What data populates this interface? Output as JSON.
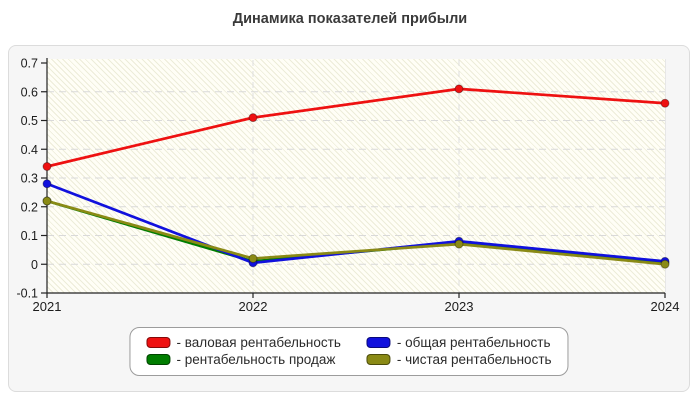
{
  "title": "Динамика показателей прибыли",
  "chart_data": {
    "type": "line",
    "title": "Динамика показателей прибыли",
    "x_labels": [
      "2021",
      "2022",
      "2023",
      "2024"
    ],
    "y_ticks": [
      "0.7",
      "0.6",
      "0.5",
      "0.4",
      "0.3",
      "0.2",
      "0.1",
      "0",
      "-0.1"
    ],
    "ylim": [
      -0.1,
      0.7
    ],
    "grid": "dashed",
    "legend_position": "bottom-center",
    "series": [
      {
        "name": "валовая рентабельность",
        "legend_label": "- валовая рентабельность",
        "color": "#ee1111",
        "values": [
          0.34,
          0.51,
          0.61,
          0.56
        ]
      },
      {
        "name": "общая рентабельность",
        "legend_label": "- общая рентабельность",
        "color": "#1111dd",
        "values": [
          0.28,
          0.005,
          0.08,
          0.01
        ]
      },
      {
        "name": "рентабельность продаж",
        "legend_label": "- рентабельность продаж",
        "color": "#007d00",
        "values": [
          0.22,
          0.01,
          0.075,
          0.005
        ]
      },
      {
        "name": "чистая рентабельность",
        "legend_label": "- чистая рентабельность",
        "color": "#8a8a15",
        "values": [
          0.22,
          0.02,
          0.07,
          0.0
        ]
      }
    ],
    "draw_order": [
      0,
      2,
      1,
      3
    ]
  }
}
